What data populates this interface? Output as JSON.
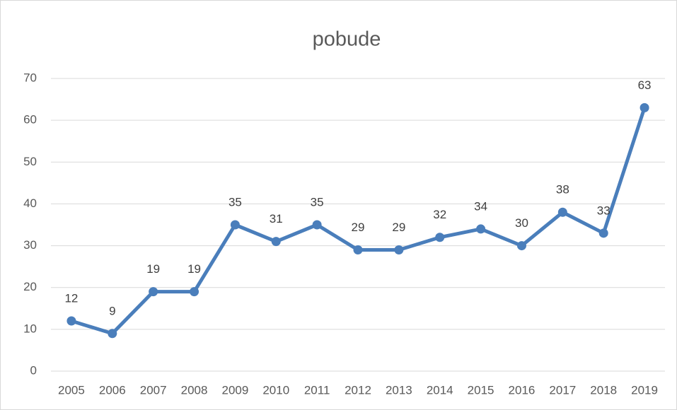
{
  "chart_data": {
    "type": "line",
    "title": "pobude",
    "categories": [
      "2005",
      "2006",
      "2007",
      "2008",
      "2009",
      "2010",
      "2011",
      "2012",
      "2013",
      "2014",
      "2015",
      "2016",
      "2017",
      "2018",
      "2019"
    ],
    "values": [
      12,
      9,
      19,
      19,
      35,
      31,
      35,
      29,
      29,
      32,
      34,
      30,
      38,
      33,
      63
    ],
    "color": "#4a7ebb",
    "ylim": [
      0,
      70
    ],
    "yticks": [
      0,
      10,
      20,
      30,
      40,
      50,
      60,
      70
    ],
    "grid": true
  }
}
